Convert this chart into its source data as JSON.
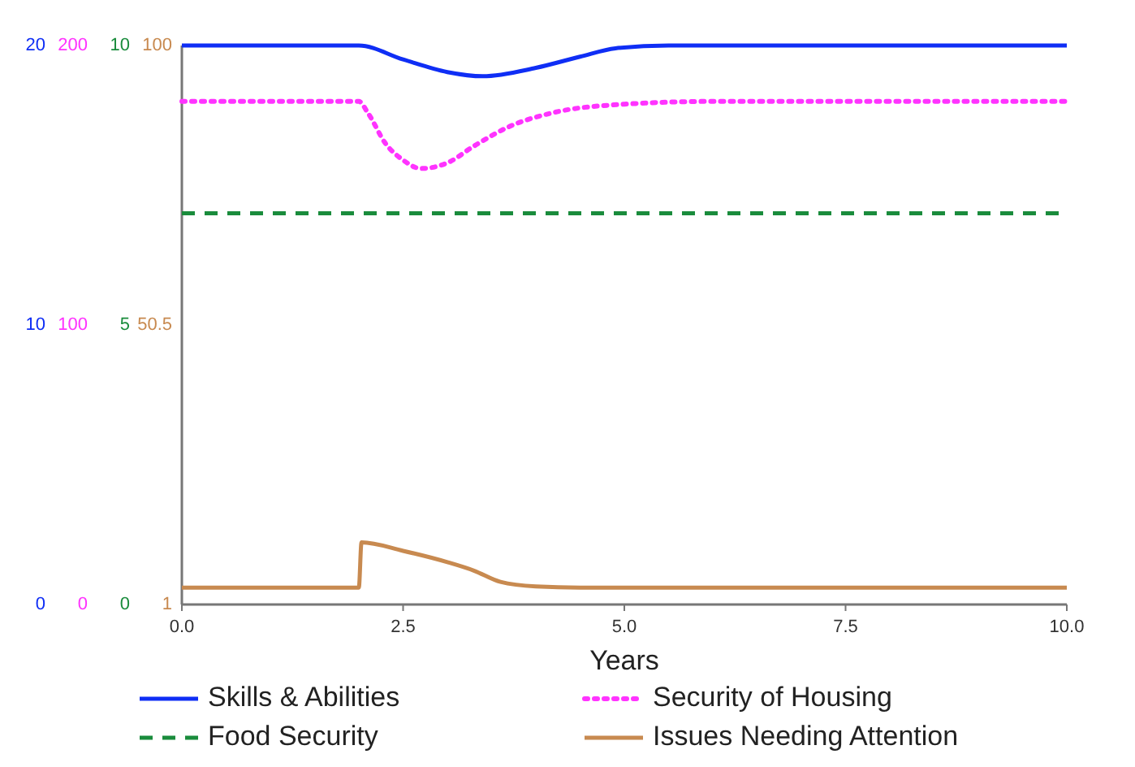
{
  "chart_data": [
    {
      "type": "line",
      "xlabel": "Years",
      "xlim": [
        0,
        10
      ],
      "xticks": [
        {
          "value": 0,
          "label": "0.0"
        },
        {
          "value": 2.5,
          "label": "2.5"
        },
        {
          "value": 5,
          "label": "5.0"
        },
        {
          "value": 7.5,
          "label": "7.5"
        },
        {
          "value": 10,
          "label": "10.0"
        }
      ],
      "ylim": [
        0,
        20
      ],
      "yticks": [
        0,
        10,
        20
      ],
      "y2lim": [
        0,
        200
      ],
      "y2ticks": [
        0,
        100,
        200
      ],
      "y3lim": [
        0,
        10
      ],
      "y3ticks": [
        0,
        5,
        10
      ],
      "grid": false,
      "legend": "bottom",
      "marker": "none",
      "series": [
        {
          "name": "Skills & Abilities",
          "color": "#0f2ef5",
          "axis": "y",
          "line_style": "solid",
          "x": [
            0,
            2,
            2.5,
            3,
            3.4,
            4,
            4.5,
            4.9,
            5.5,
            10
          ],
          "values": [
            20,
            20,
            19.5,
            19.05,
            18.9,
            19.2,
            19.6,
            19.9,
            20,
            20
          ]
        },
        {
          "name": "Security of Housing",
          "color": "#ff33ff",
          "axis": "y2",
          "line_style": "dotted",
          "x": [
            0,
            2,
            2.1,
            2.3,
            2.5,
            2.7,
            3,
            3.3,
            3.7,
            4.2,
            5,
            6,
            10
          ],
          "values": [
            180,
            180,
            176,
            165,
            159,
            156,
            158,
            164,
            171,
            176,
            179,
            180,
            180
          ]
        },
        {
          "name": "Food Security",
          "color": "#1a8c3c",
          "axis": "y3",
          "line_style": "dashed",
          "x": [
            0,
            10
          ],
          "values": [
            7,
            7
          ]
        }
      ]
    },
    {
      "type": "line",
      "xlim": [
        0,
        10
      ],
      "ylim": [
        1,
        100
      ],
      "yticks": [
        1,
        50.5,
        100
      ],
      "tick_labels": "y",
      "grid": false,
      "legend": "bottom",
      "marker": "none",
      "series": [
        {
          "name": "Issues Needing Attention",
          "color": "#c88a50",
          "line_style": "solid",
          "x": [
            0,
            2,
            2.03,
            2.5,
            3,
            3.3,
            3.6,
            4,
            4.5,
            10
          ],
          "values": [
            4,
            4,
            12,
            10.5,
            8.5,
            7,
            5,
            4.2,
            4,
            4
          ]
        }
      ]
    }
  ]
}
